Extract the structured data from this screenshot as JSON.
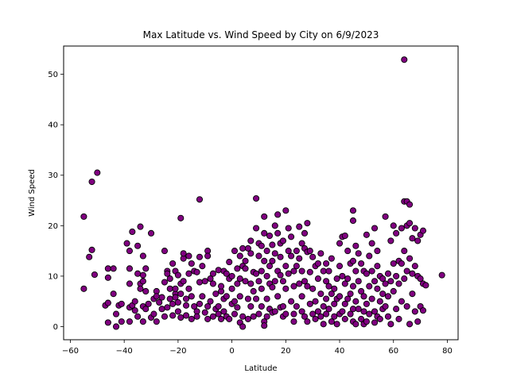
{
  "chart_data": {
    "type": "scatter",
    "title": "Max Latitude vs. Wind Speed by City on 6/9/2023",
    "xlabel": "Latitude",
    "ylabel": "Wind Speed",
    "xlim": [
      -62.5,
      84
    ],
    "ylim": [
      -2.6,
      55.6
    ],
    "xticks": [
      -60,
      -40,
      -20,
      0,
      20,
      40,
      60,
      80
    ],
    "yticks": [
      0,
      10,
      20,
      30,
      40,
      50
    ],
    "grid": false,
    "marker_color": "#800080",
    "marker_edge_color": "#000000",
    "points": [
      [
        -55,
        21.8
      ],
      [
        -55,
        7.5
      ],
      [
        -53,
        13.8
      ],
      [
        -52,
        15.2
      ],
      [
        -52,
        28.7
      ],
      [
        -51,
        10.3
      ],
      [
        -50,
        30.5
      ],
      [
        -47,
        4.2
      ],
      [
        -46,
        4.7
      ],
      [
        -46,
        11.5
      ],
      [
        -46,
        9.7
      ],
      [
        -46,
        0.8
      ],
      [
        -44,
        11.5
      ],
      [
        -44,
        6.5
      ],
      [
        -43,
        2.5
      ],
      [
        -42,
        4.2
      ],
      [
        -43,
        0.0
      ],
      [
        -41,
        1.0
      ],
      [
        -41,
        4.5
      ],
      [
        -39,
        16.5
      ],
      [
        -38,
        15.0
      ],
      [
        -38,
        11.5
      ],
      [
        -38,
        8.5
      ],
      [
        -38,
        3.8
      ],
      [
        -38,
        1.0
      ],
      [
        -37,
        18.8
      ],
      [
        -37,
        4.2
      ],
      [
        -36,
        5.0
      ],
      [
        -36,
        3.2
      ],
      [
        -35,
        2.0
      ],
      [
        -35,
        10.5
      ],
      [
        -35,
        16.0
      ],
      [
        -34,
        19.8
      ],
      [
        -34,
        8.5
      ],
      [
        -34,
        7.5
      ],
      [
        -33,
        9.0
      ],
      [
        -33,
        10.2
      ],
      [
        -33,
        14.0
      ],
      [
        -33,
        4.0
      ],
      [
        -33,
        1.0
      ],
      [
        -32,
        11.5
      ],
      [
        -32,
        7.0
      ],
      [
        -32,
        3.5
      ],
      [
        -31,
        4.5
      ],
      [
        -30,
        18.5
      ],
      [
        -30,
        1.8
      ],
      [
        -29,
        5.5
      ],
      [
        -29,
        2.5
      ],
      [
        -28,
        7.0
      ],
      [
        -28,
        6.0
      ],
      [
        -28,
        1.0
      ],
      [
        -27,
        4.8
      ],
      [
        -26,
        3.5
      ],
      [
        -26,
        5.8
      ],
      [
        -25,
        8.8
      ],
      [
        -25,
        15.0
      ],
      [
        -25,
        2.0
      ],
      [
        -24,
        11.0
      ],
      [
        -24,
        10.5
      ],
      [
        -24,
        3.8
      ],
      [
        -23,
        7.5
      ],
      [
        -23,
        9.5
      ],
      [
        -23,
        5.5
      ],
      [
        -22,
        12.5
      ],
      [
        -22,
        4.5
      ],
      [
        -22,
        2.2
      ],
      [
        -21,
        6.5
      ],
      [
        -21,
        7.5
      ],
      [
        -21,
        11.0
      ],
      [
        -21,
        5.8
      ],
      [
        -20,
        10.2
      ],
      [
        -20,
        4.8
      ],
      [
        -20,
        3.0
      ],
      [
        -19,
        21.5
      ],
      [
        -19,
        8.5
      ],
      [
        -19,
        6.5
      ],
      [
        -19,
        1.8
      ],
      [
        -18,
        13.5
      ],
      [
        -18,
        14.5
      ],
      [
        -18,
        9.0
      ],
      [
        -17,
        5.5
      ],
      [
        -17,
        4.2
      ],
      [
        -17,
        2.2
      ],
      [
        -16,
        10.5
      ],
      [
        -16,
        7.5
      ],
      [
        -16,
        14.0
      ],
      [
        -15,
        12.5
      ],
      [
        -15,
        6.0
      ],
      [
        -15,
        1.5
      ],
      [
        -14,
        4.0
      ],
      [
        -14,
        11.0
      ],
      [
        -13,
        10.8
      ],
      [
        -13,
        3.0
      ],
      [
        -13,
        2.0
      ],
      [
        -12,
        25.2
      ],
      [
        -12,
        13.8
      ],
      [
        -12,
        8.8
      ],
      [
        -12,
        4.5
      ],
      [
        -11,
        6.0
      ],
      [
        -11,
        12.0
      ],
      [
        -10,
        2.8
      ],
      [
        -10,
        9.0
      ],
      [
        -9,
        15.0
      ],
      [
        -9,
        14.0
      ],
      [
        -9,
        4.0
      ],
      [
        -9,
        1.5
      ],
      [
        -8,
        9.5
      ],
      [
        -8,
        5.0
      ],
      [
        -7,
        2.0
      ],
      [
        -7,
        8.5
      ],
      [
        -7,
        10.5
      ],
      [
        -6,
        3.5
      ],
      [
        -6,
        6.5
      ],
      [
        -5,
        11.2
      ],
      [
        -5,
        4.0
      ],
      [
        -5,
        2.5
      ],
      [
        -4,
        7.0
      ],
      [
        -4,
        1.5
      ],
      [
        -4,
        8.0
      ],
      [
        -3,
        5.5
      ],
      [
        -3,
        11.0
      ],
      [
        -3,
        3.0
      ],
      [
        -2,
        10.5
      ],
      [
        -2,
        2.0
      ],
      [
        -2,
        6.0
      ],
      [
        -1,
        12.8
      ],
      [
        -1,
        9.5
      ],
      [
        -1,
        1.5
      ],
      [
        0,
        4.5
      ],
      [
        0,
        10.0
      ],
      [
        0,
        7.5
      ],
      [
        1,
        5.0
      ],
      [
        1,
        2.5
      ],
      [
        1,
        15.0
      ],
      [
        2,
        11.5
      ],
      [
        2,
        3.8
      ],
      [
        2,
        8.5
      ],
      [
        3,
        14.0
      ],
      [
        3,
        9.5
      ],
      [
        3,
        0.8
      ],
      [
        3,
        6.0
      ],
      [
        4,
        15.5
      ],
      [
        4,
        12.0
      ],
      [
        4,
        2.0
      ],
      [
        4,
        0.0
      ],
      [
        5,
        13.0
      ],
      [
        5,
        11.5
      ],
      [
        5,
        9.0
      ],
      [
        6,
        5.5
      ],
      [
        6,
        15.5
      ],
      [
        6,
        1.5
      ],
      [
        7,
        17.0
      ],
      [
        7,
        14.5
      ],
      [
        7,
        8.5
      ],
      [
        7,
        4.0
      ],
      [
        8,
        10.8
      ],
      [
        8,
        7.0
      ],
      [
        8,
        2.0
      ],
      [
        9,
        25.4
      ],
      [
        9,
        19.5
      ],
      [
        9,
        10.5
      ],
      [
        9,
        5.5
      ],
      [
        10,
        16.5
      ],
      [
        10,
        14.0
      ],
      [
        10,
        9.0
      ],
      [
        10,
        2.5
      ],
      [
        11,
        16.0
      ],
      [
        11,
        11.0
      ],
      [
        11,
        7.5
      ],
      [
        11,
        4.0
      ],
      [
        12,
        21.8
      ],
      [
        12,
        18.5
      ],
      [
        12,
        13.0
      ],
      [
        12,
        1.0
      ],
      [
        12,
        0.2
      ],
      [
        13,
        15.0
      ],
      [
        13,
        10.0
      ],
      [
        13,
        5.5
      ],
      [
        13,
        2.0
      ],
      [
        14,
        18.0
      ],
      [
        14,
        12.0
      ],
      [
        14,
        8.5
      ],
      [
        14,
        3.5
      ],
      [
        15,
        16.2
      ],
      [
        15,
        13.0
      ],
      [
        15,
        7.8
      ],
      [
        15,
        2.8
      ],
      [
        16,
        20.0
      ],
      [
        16,
        14.5
      ],
      [
        16,
        9.0
      ],
      [
        16,
        3.0
      ],
      [
        17,
        22.2
      ],
      [
        17,
        18.5
      ],
      [
        17,
        11.0
      ],
      [
        17,
        6.0
      ],
      [
        18,
        16.5
      ],
      [
        18,
        13.8
      ],
      [
        18,
        10.2
      ],
      [
        18,
        3.8
      ],
      [
        19,
        17.0
      ],
      [
        19,
        9.0
      ],
      [
        19,
        4.0
      ],
      [
        19,
        2.0
      ],
      [
        20,
        23.0
      ],
      [
        20,
        12.0
      ],
      [
        20,
        7.5
      ],
      [
        20,
        2.5
      ],
      [
        21,
        19.5
      ],
      [
        21,
        15.0
      ],
      [
        21,
        10.5
      ],
      [
        22,
        17.8
      ],
      [
        22,
        14.0
      ],
      [
        22,
        5.0
      ],
      [
        23,
        11.0
      ],
      [
        23,
        8.0
      ],
      [
        23,
        2.5
      ],
      [
        23,
        1.0
      ],
      [
        24,
        15.0
      ],
      [
        24,
        12.0
      ],
      [
        24,
        4.0
      ],
      [
        25,
        19.8
      ],
      [
        25,
        13.5
      ],
      [
        25,
        8.5
      ],
      [
        26,
        16.5
      ],
      [
        26,
        11.0
      ],
      [
        26,
        6.0
      ],
      [
        26,
        3.0
      ],
      [
        27,
        18.5
      ],
      [
        27,
        15.5
      ],
      [
        27,
        9.0
      ],
      [
        27,
        2.0
      ],
      [
        28,
        20.5
      ],
      [
        28,
        14.8
      ],
      [
        28,
        8.0
      ],
      [
        28,
        1.0
      ],
      [
        29,
        15.0
      ],
      [
        29,
        10.8
      ],
      [
        29,
        4.5
      ],
      [
        30,
        13.8
      ],
      [
        30,
        7.5
      ],
      [
        30,
        2.5
      ],
      [
        31,
        12.0
      ],
      [
        31,
        5.0
      ],
      [
        31,
        1.5
      ],
      [
        32,
        9.5
      ],
      [
        32,
        3.0
      ],
      [
        32,
        12.5
      ],
      [
        33,
        14.5
      ],
      [
        33,
        6.5
      ],
      [
        33,
        2.0
      ],
      [
        34,
        11.0
      ],
      [
        34,
        4.0
      ],
      [
        34,
        0.5
      ],
      [
        35,
        9.0
      ],
      [
        35,
        12.5
      ],
      [
        35,
        5.5
      ],
      [
        35,
        2.5
      ],
      [
        36,
        8.0
      ],
      [
        36,
        3.5
      ],
      [
        36,
        11.0
      ],
      [
        37,
        6.5
      ],
      [
        37,
        1.0
      ],
      [
        37,
        13.5
      ],
      [
        38,
        7.5
      ],
      [
        38,
        4.5
      ],
      [
        38,
        2.0
      ],
      [
        39,
        9.5
      ],
      [
        39,
        5.5
      ],
      [
        39,
        0.5
      ],
      [
        40,
        16.5
      ],
      [
        40,
        12.0
      ],
      [
        40,
        6.0
      ],
      [
        40,
        2.5
      ],
      [
        41,
        17.8
      ],
      [
        41,
        10.0
      ],
      [
        41,
        3.0
      ],
      [
        42,
        18.0
      ],
      [
        42,
        8.5
      ],
      [
        42,
        4.5
      ],
      [
        42,
        1.5
      ],
      [
        43,
        15.0
      ],
      [
        43,
        9.5
      ],
      [
        43,
        5.5
      ],
      [
        44,
        12.5
      ],
      [
        44,
        6.5
      ],
      [
        44,
        2.5
      ],
      [
        45,
        21.0
      ],
      [
        45,
        13.0
      ],
      [
        45,
        8.0
      ],
      [
        45,
        3.5
      ],
      [
        45,
        1.0
      ],
      [
        45,
        23.0
      ],
      [
        46,
        16.0
      ],
      [
        46,
        11.0
      ],
      [
        46,
        5.0
      ],
      [
        46,
        0.5
      ],
      [
        47,
        14.5
      ],
      [
        47,
        9.0
      ],
      [
        47,
        3.5
      ],
      [
        48,
        12.5
      ],
      [
        48,
        7.0
      ],
      [
        48,
        1.5
      ],
      [
        49,
        11.0
      ],
      [
        49,
        6.0
      ],
      [
        49,
        0.5
      ],
      [
        49,
        3.0
      ],
      [
        50,
        18.2
      ],
      [
        50,
        10.5
      ],
      [
        50,
        4.5
      ],
      [
        50,
        1.0
      ],
      [
        51,
        14.0
      ],
      [
        51,
        8.0
      ],
      [
        51,
        2.5
      ],
      [
        52,
        16.5
      ],
      [
        52,
        11.0
      ],
      [
        52,
        5.5
      ],
      [
        53,
        19.5
      ],
      [
        53,
        9.0
      ],
      [
        53,
        3.0
      ],
      [
        53,
        0.8
      ],
      [
        54,
        15.0
      ],
      [
        54,
        12.0
      ],
      [
        54,
        7.5
      ],
      [
        54,
        2.0
      ],
      [
        55,
        10.0
      ],
      [
        55,
        5.0
      ],
      [
        55,
        1.5
      ],
      [
        56,
        9.5
      ],
      [
        56,
        6.5
      ],
      [
        56,
        3.5
      ],
      [
        57,
        21.8
      ],
      [
        57,
        8.5
      ],
      [
        57,
        4.0
      ],
      [
        58,
        10.5
      ],
      [
        58,
        6.0
      ],
      [
        58,
        2.0
      ],
      [
        59,
        17.0
      ],
      [
        59,
        9.0
      ],
      [
        59,
        0.5
      ],
      [
        60,
        20.0
      ],
      [
        60,
        12.5
      ],
      [
        60,
        7.0
      ],
      [
        61,
        18.5
      ],
      [
        61,
        10.0
      ],
      [
        61,
        3.5
      ],
      [
        62,
        13.0
      ],
      [
        62,
        8.5
      ],
      [
        62,
        1.5
      ],
      [
        63,
        19.5
      ],
      [
        63,
        12.5
      ],
      [
        63,
        5.0
      ],
      [
        64,
        52.9
      ],
      [
        64,
        24.8
      ],
      [
        64,
        15.0
      ],
      [
        64,
        9.5
      ],
      [
        65,
        24.8
      ],
      [
        65,
        20.0
      ],
      [
        65,
        11.0
      ],
      [
        65,
        4.0
      ],
      [
        66,
        24.2
      ],
      [
        66,
        20.5
      ],
      [
        66,
        13.5
      ],
      [
        66,
        0.5
      ],
      [
        67,
        17.5
      ],
      [
        67,
        10.5
      ],
      [
        67,
        6.5
      ],
      [
        68,
        19.5
      ],
      [
        68,
        12.0
      ],
      [
        68,
        3.0
      ],
      [
        69,
        17.0
      ],
      [
        69,
        10.0
      ],
      [
        69,
        1.0
      ],
      [
        70,
        18.2
      ],
      [
        70,
        9.5
      ],
      [
        70,
        4.0
      ],
      [
        71,
        19.0
      ],
      [
        71,
        8.5
      ],
      [
        71,
        3.2
      ],
      [
        72,
        8.2
      ],
      [
        78,
        10.2
      ]
    ]
  }
}
